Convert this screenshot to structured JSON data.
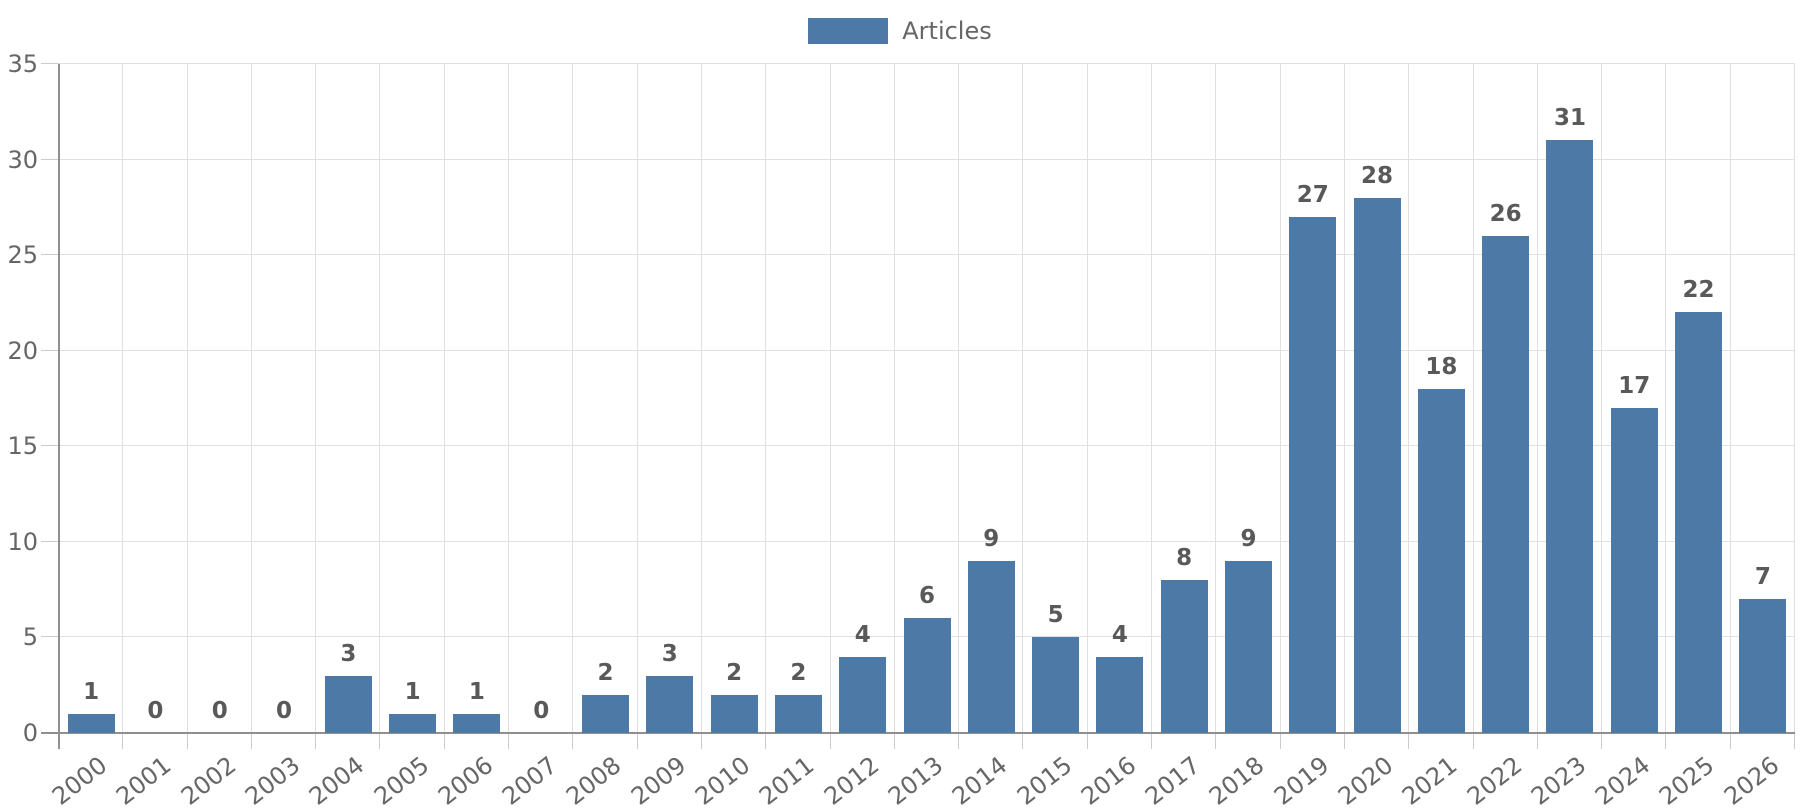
{
  "legend": {
    "swatch_color": "#4d79a6"
  },
  "chart_data": {
    "type": "bar",
    "title": "",
    "xlabel": "",
    "ylabel": "",
    "series_name": "Articles",
    "categories": [
      "2000",
      "2001",
      "2002",
      "2003",
      "2004",
      "2005",
      "2006",
      "2007",
      "2008",
      "2009",
      "2010",
      "2011",
      "2012",
      "2013",
      "2014",
      "2015",
      "2016",
      "2017",
      "2018",
      "2019",
      "2020",
      "2021",
      "2022",
      "2023",
      "2024",
      "2025",
      "2026"
    ],
    "values": [
      1,
      0,
      0,
      0,
      3,
      1,
      1,
      0,
      2,
      3,
      2,
      2,
      4,
      6,
      9,
      5,
      4,
      8,
      9,
      27,
      28,
      18,
      26,
      31,
      17,
      22,
      7
    ],
    "ylim": [
      0,
      35
    ],
    "yticks": [
      0,
      5,
      10,
      15,
      20,
      25,
      30,
      35
    ],
    "grid": true,
    "bar_value_labels": true,
    "legend_position": "top-center",
    "colors": {
      "bar": "#4d79a6",
      "grid_line": "#e0e0e0",
      "tick_line": "#cccccc",
      "axis_line": "#8f8f8f",
      "axis_label": "#666666",
      "value_label": "#595959"
    }
  }
}
